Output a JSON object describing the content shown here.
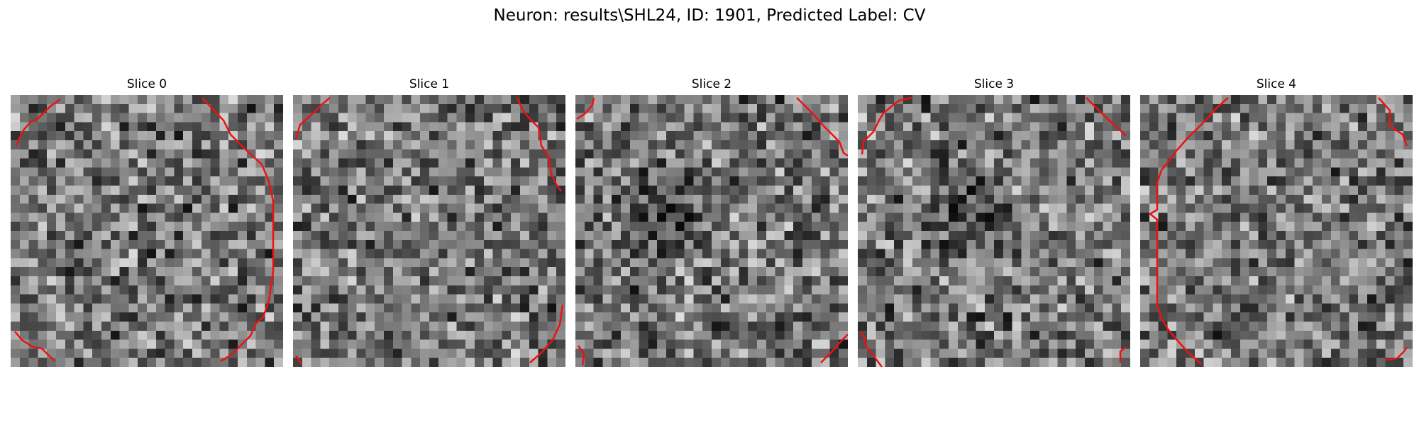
{
  "figure": {
    "title": "Neuron: results\\SHL24, ID: 1901, Predicted Label: CV"
  },
  "panels": [
    {
      "title": "Slice 0",
      "dark_blob": null,
      "image_description": "grayscale noisy pixel patch",
      "contour_color": "#ee1111"
    },
    {
      "title": "Slice 1",
      "dark_blob": null,
      "image_description": "grayscale noisy pixel patch",
      "contour_color": "#ee1111"
    },
    {
      "title": "Slice 2",
      "dark_blob": "center-left",
      "image_description": "grayscale noisy pixel patch",
      "contour_color": "#ee1111"
    },
    {
      "title": "Slice 3",
      "dark_blob": "center",
      "image_description": "grayscale noisy pixel patch",
      "contour_color": "#ee1111"
    },
    {
      "title": "Slice 4",
      "dark_blob": null,
      "image_description": "grayscale noisy pixel patch",
      "contour_color": "#ee1111"
    }
  ]
}
